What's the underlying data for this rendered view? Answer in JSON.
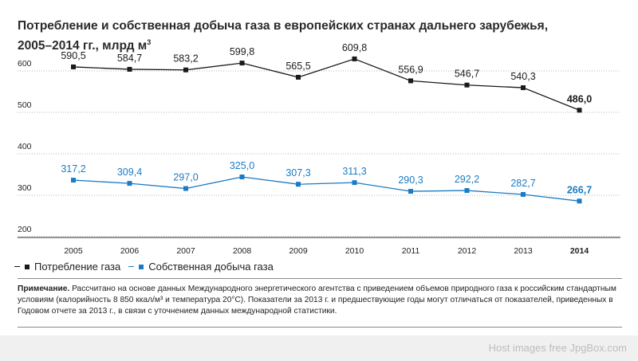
{
  "title_line1": "Потребление и собственная добыча газа в европейских странах дальнего зарубежья,",
  "title_line2": "2005–2014 гг., млрд м",
  "title_sup": "3",
  "colors": {
    "consumption": "#1a1a1a",
    "production": "#1a7cc4"
  },
  "chart_data": {
    "type": "line",
    "categories": [
      "2005",
      "2006",
      "2007",
      "2008",
      "2009",
      "2010",
      "2011",
      "2012",
      "2013",
      "2014"
    ],
    "series": [
      {
        "name": "Потребление газа",
        "values": [
          590.5,
          584.7,
          583.2,
          599.8,
          565.5,
          609.8,
          556.9,
          546.7,
          540.3,
          486.0
        ],
        "labels": [
          "590,5",
          "584,7",
          "583,2",
          "599,8",
          "565,5",
          "609,8",
          "556,9",
          "546,7",
          "540,3",
          "486,0"
        ]
      },
      {
        "name": "Собственная добыча газа",
        "values": [
          317.2,
          309.4,
          297.0,
          325.0,
          307.3,
          311.3,
          290.3,
          292.2,
          282.7,
          266.7
        ],
        "labels": [
          "317,2",
          "309,4",
          "297,0",
          "325,0",
          "307,3",
          "311,3",
          "290,3",
          "292,2",
          "282,7",
          "266,7"
        ]
      }
    ],
    "yticks": [
      "600",
      "500",
      "400",
      "300",
      "200"
    ],
    "ylim": [
      200,
      600
    ],
    "highlight_last": true
  },
  "note_label": "Примечание.",
  "note_text": " Рассчитано на основе данных Международного энергетического агентства с приведением объемов природного газа к российским стандартным условиям (калорийность 8 850 ккал/м³ и температура 20°C). Показатели за 2013 г. и предшествующие годы могут отличаться от показателей, приведенных в Годовом отчете за 2013 г., в связи с уточнением данных международной статистики.",
  "footer_text": "Host images free JpgBox.com"
}
